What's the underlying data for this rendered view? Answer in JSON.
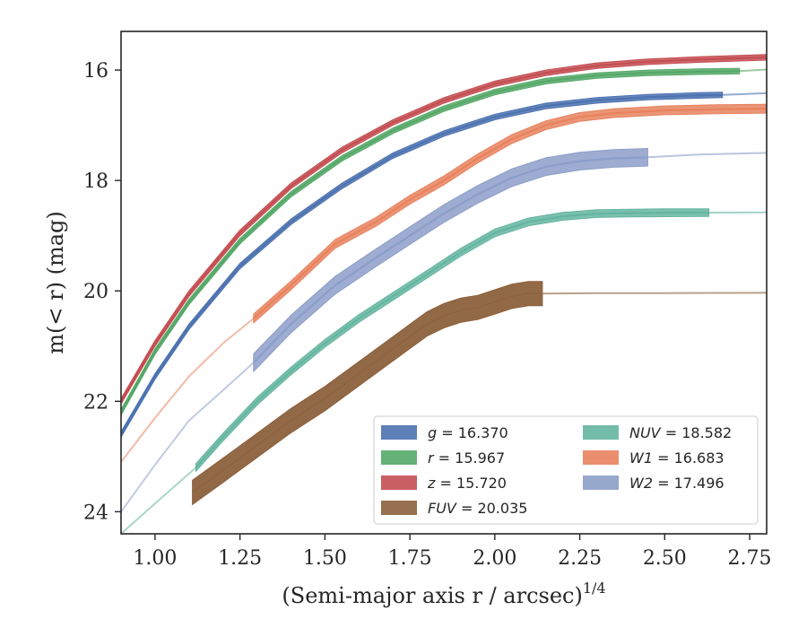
{
  "chart_data": {
    "type": "line",
    "xlabel": "(Semi-major axis r / arcsec)",
    "xlabel_exponent": "1/4",
    "ylabel": "m(< r) (mag)",
    "xlim": [
      0.9,
      2.8
    ],
    "ylim": [
      24.4,
      15.3
    ],
    "y_inverted": true,
    "x_ticks": [
      "1.00",
      "1.25",
      "1.50",
      "1.75",
      "2.00",
      "2.25",
      "2.50",
      "2.75"
    ],
    "y_ticks": [
      "16",
      "18",
      "20",
      "22",
      "24"
    ],
    "grid": false,
    "legend_placement": "lower-right",
    "series": [
      {
        "name": "g = 16.370",
        "var": "g",
        "value": "16.370",
        "color": "#4c72b0",
        "x": [
          0.9,
          1.0,
          1.1,
          1.25,
          1.4,
          1.55,
          1.7,
          1.85,
          2.0,
          2.15,
          2.3,
          2.45,
          2.6,
          2.67
        ],
        "y": [
          22.6,
          21.55,
          20.65,
          19.55,
          18.75,
          18.1,
          17.55,
          17.15,
          16.85,
          16.65,
          16.55,
          16.49,
          16.46,
          16.45
        ],
        "extension": {
          "x": [
            2.67,
            2.8
          ],
          "y": [
            16.45,
            16.42
          ]
        },
        "halfwidth": 0.05
      },
      {
        "name": "r = 15.967",
        "var": "r",
        "value": "15.967",
        "color": "#55a868",
        "x": [
          0.9,
          1.0,
          1.1,
          1.25,
          1.4,
          1.55,
          1.7,
          1.85,
          2.0,
          2.15,
          2.3,
          2.45,
          2.6,
          2.72
        ],
        "y": [
          22.2,
          21.1,
          20.2,
          19.1,
          18.25,
          17.6,
          17.1,
          16.7,
          16.4,
          16.2,
          16.1,
          16.05,
          16.03,
          16.02
        ],
        "extension": {
          "x": [
            2.72,
            2.8
          ],
          "y": [
            16.02,
            15.99
          ]
        },
        "halfwidth": 0.05
      },
      {
        "name": "z = 15.720",
        "var": "z",
        "value": "15.720",
        "color": "#c44e52",
        "x": [
          0.9,
          1.0,
          1.1,
          1.25,
          1.4,
          1.55,
          1.7,
          1.85,
          2.0,
          2.15,
          2.3,
          2.45,
          2.6,
          2.8
        ],
        "y": [
          22.0,
          20.95,
          20.05,
          18.95,
          18.1,
          17.45,
          16.95,
          16.55,
          16.25,
          16.05,
          15.92,
          15.85,
          15.81,
          15.77
        ],
        "halfwidth": 0.05
      },
      {
        "name": "FUV = 20.035",
        "var": "FUV",
        "value": "20.035",
        "color": "#8c613c",
        "x": [
          1.11,
          1.2,
          1.3,
          1.4,
          1.5,
          1.6,
          1.7,
          1.8,
          1.85,
          1.9,
          1.95,
          2.0,
          2.05,
          2.1,
          2.14
        ],
        "y": [
          23.65,
          23.25,
          22.8,
          22.35,
          21.95,
          21.5,
          21.05,
          20.6,
          20.45,
          20.35,
          20.3,
          20.2,
          20.1,
          20.05,
          20.05
        ],
        "extension": {
          "x": [
            2.14,
            2.3,
            2.5,
            2.8
          ],
          "y": [
            20.05,
            20.04,
            20.04,
            20.035
          ]
        },
        "halfwidth": 0.22
      },
      {
        "name": "NUV = 18.582",
        "var": "NUV",
        "value": "18.582",
        "color": "#64b5a0",
        "x": [
          1.12,
          1.2,
          1.3,
          1.4,
          1.5,
          1.6,
          1.7,
          1.8,
          1.9,
          2.0,
          2.1,
          2.2,
          2.3,
          2.4,
          2.5,
          2.63
        ],
        "y": [
          23.2,
          22.65,
          22.0,
          21.45,
          20.95,
          20.5,
          20.1,
          19.7,
          19.3,
          18.95,
          18.75,
          18.65,
          18.6,
          18.59,
          18.585,
          18.582
        ],
        "prefix": {
          "x": [
            0.9,
            1.0,
            1.12
          ],
          "y": [
            24.4,
            23.85,
            23.2
          ]
        },
        "extension": {
          "x": [
            2.63,
            2.8
          ],
          "y": [
            18.582,
            18.58
          ]
        },
        "halfwidth": 0.07
      },
      {
        "name": "W1 = 16.683",
        "var": "W1",
        "value": "16.683",
        "color": "#e8825e",
        "x": [
          1.29,
          1.4,
          1.53,
          1.65,
          1.75,
          1.85,
          1.95,
          2.05,
          2.15,
          2.25,
          2.35,
          2.5,
          2.65,
          2.8
        ],
        "y": [
          20.5,
          19.9,
          19.15,
          18.75,
          18.35,
          18.0,
          17.6,
          17.25,
          17.0,
          16.85,
          16.78,
          16.73,
          16.71,
          16.7
        ],
        "prefix": {
          "x": [
            0.9,
            1.0,
            1.1,
            1.2,
            1.29
          ],
          "y": [
            23.1,
            22.3,
            21.55,
            20.95,
            20.5
          ]
        },
        "halfwidth": 0.08
      },
      {
        "name": "W2 = 17.496",
        "var": "W2",
        "value": "17.496",
        "color": "#8c9ec8",
        "x": [
          1.29,
          1.4,
          1.53,
          1.65,
          1.75,
          1.85,
          1.95,
          2.05,
          2.15,
          2.25,
          2.35,
          2.45
        ],
        "y": [
          21.3,
          20.6,
          19.9,
          19.4,
          19.0,
          18.6,
          18.25,
          17.95,
          17.75,
          17.65,
          17.6,
          17.58
        ],
        "prefix": {
          "x": [
            0.9,
            1.0,
            1.1,
            1.2,
            1.29
          ],
          "y": [
            24.0,
            23.15,
            22.35,
            21.8,
            21.3
          ]
        },
        "extension": {
          "x": [
            2.45,
            2.6,
            2.8
          ],
          "y": [
            17.58,
            17.53,
            17.5
          ]
        },
        "halfwidth": 0.16
      }
    ],
    "legend": [
      {
        "var": "g",
        "value": "16.370",
        "color": "#4c72b0",
        "col": 0,
        "row": 0
      },
      {
        "var": "r",
        "value": "15.967",
        "color": "#55a868",
        "col": 0,
        "row": 1
      },
      {
        "var": "z",
        "value": "15.720",
        "color": "#c44e52",
        "col": 0,
        "row": 2
      },
      {
        "var": "FUV",
        "value": "20.035",
        "color": "#8c613c",
        "col": 0,
        "row": 3
      },
      {
        "var": "NUV",
        "value": "18.582",
        "color": "#64b5a0",
        "col": 1,
        "row": 0
      },
      {
        "var": "W1",
        "value": "16.683",
        "color": "#e8825e",
        "col": 1,
        "row": 1
      },
      {
        "var": "W2",
        "value": "17.496",
        "color": "#8c9ec8",
        "col": 1,
        "row": 2
      }
    ]
  }
}
